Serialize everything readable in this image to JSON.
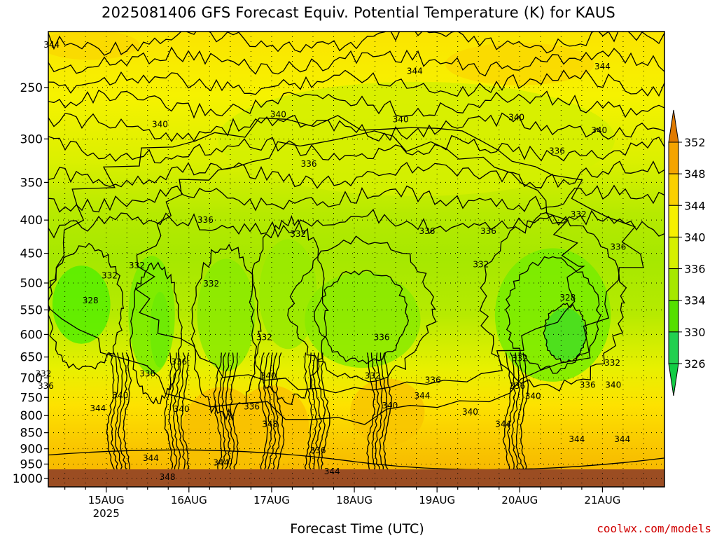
{
  "chart_data": {
    "type": "heatmap",
    "title": "2025081406 GFS Forecast Equiv. Potential Temperature (K) for KAUS",
    "xlabel": "Forecast Time (UTC)",
    "ylabel": "",
    "y_scale": "log",
    "y_reversed": true,
    "ylim": [
      1030,
      205
    ],
    "yticks": [
      1000,
      950,
      900,
      850,
      800,
      750,
      700,
      650,
      600,
      550,
      500,
      450,
      400,
      350,
      300,
      250
    ],
    "ytick_labels": [
      "1000",
      "950",
      "900",
      "850",
      "800",
      "750",
      "700",
      "650",
      "600",
      "550",
      "500",
      "450",
      "400",
      "350",
      "300",
      "250"
    ],
    "x_ticks": [
      {
        "time": "2025-08-15T00Z",
        "label": "15AUG",
        "sublabel": "2025"
      },
      {
        "time": "2025-08-16T00Z",
        "label": "16AUG",
        "sublabel": ""
      },
      {
        "time": "2025-08-17T00Z",
        "label": "17AUG",
        "sublabel": ""
      },
      {
        "time": "2025-08-18T00Z",
        "label": "18AUG",
        "sublabel": ""
      },
      {
        "time": "2025-08-19T00Z",
        "label": "19AUG",
        "sublabel": ""
      },
      {
        "time": "2025-08-20T00Z",
        "label": "20AUG",
        "sublabel": ""
      },
      {
        "time": "2025-08-21T00Z",
        "label": "21AUG",
        "sublabel": ""
      }
    ],
    "grid": true,
    "units": "K",
    "colorbar": {
      "levels": [
        326,
        330,
        334,
        336,
        340,
        344,
        348,
        352
      ],
      "colors": [
        "#33dd22",
        "#44ee00",
        "#99ee00",
        "#ccf000",
        "#f2f200",
        "#ffdd00",
        "#f9b800",
        "#f08800"
      ],
      "under_color": "#11cc44",
      "over_color": "#e07a00"
    },
    "series": [
      {
        "name": "",
        "points": [
          [
            "15AUG 00Z",
            450,
            332
          ],
          [
            "15AUG 06Z",
            650,
            334
          ],
          [
            "16AUG 00Z",
            700,
            336
          ],
          [
            "17AUG 00Z",
            700,
            340
          ],
          [
            "18AUG 12Z",
            700,
            332
          ],
          [
            "20AUG 12Z",
            600,
            328
          ],
          [
            "21AUG 00Z",
            950,
            344
          ]
        ]
      }
    ],
    "contour_labels": [
      {
        "text": "344",
        "time": 14.34,
        "p": 215
      },
      {
        "text": "344",
        "time": 18.73,
        "p": 236
      },
      {
        "text": "344",
        "time": 21.0,
        "p": 232
      },
      {
        "text": "340",
        "time": 15.65,
        "p": 285
      },
      {
        "text": "340",
        "time": 17.08,
        "p": 275
      },
      {
        "text": "340",
        "time": 18.56,
        "p": 280
      },
      {
        "text": "340",
        "time": 19.96,
        "p": 278
      },
      {
        "text": "340",
        "time": 20.96,
        "p": 291
      },
      {
        "text": "336",
        "time": 17.45,
        "p": 328
      },
      {
        "text": "336",
        "time": 20.45,
        "p": 313
      },
      {
        "text": "336",
        "time": 16.2,
        "p": 400
      },
      {
        "text": "336",
        "time": 18.88,
        "p": 416
      },
      {
        "text": "336",
        "time": 19.62,
        "p": 416
      },
      {
        "text": "336",
        "time": 21.19,
        "p": 440
      },
      {
        "text": "332",
        "time": 20.71,
        "p": 392
      },
      {
        "text": "332",
        "time": 17.32,
        "p": 420
      },
      {
        "text": "332",
        "time": 15.37,
        "p": 470
      },
      {
        "text": "332",
        "time": 15.04,
        "p": 487
      },
      {
        "text": "332",
        "time": 16.27,
        "p": 501
      },
      {
        "text": "332",
        "time": 19.53,
        "p": 468
      },
      {
        "text": "328",
        "time": 14.81,
        "p": 532
      },
      {
        "text": "328",
        "time": 20.58,
        "p": 527
      },
      {
        "text": "332",
        "time": 16.91,
        "p": 606
      },
      {
        "text": "336",
        "time": 18.33,
        "p": 606
      },
      {
        "text": "336",
        "time": 15.88,
        "p": 661
      },
      {
        "text": "332",
        "time": 20.0,
        "p": 653
      },
      {
        "text": "332",
        "time": 21.12,
        "p": 664
      },
      {
        "text": "332",
        "time": 14.24,
        "p": 690
      },
      {
        "text": "336",
        "time": 14.27,
        "p": 720
      },
      {
        "text": "336",
        "time": 15.5,
        "p": 690
      },
      {
        "text": "340",
        "time": 16.96,
        "p": 695
      },
      {
        "text": "332",
        "time": 18.22,
        "p": 695
      },
      {
        "text": "336",
        "time": 18.95,
        "p": 705
      },
      {
        "text": "336",
        "time": 19.97,
        "p": 720
      },
      {
        "text": "336",
        "time": 20.82,
        "p": 718
      },
      {
        "text": "340",
        "time": 21.13,
        "p": 718
      },
      {
        "text": "340",
        "time": 15.17,
        "p": 745
      },
      {
        "text": "344",
        "time": 18.82,
        "p": 746
      },
      {
        "text": "340",
        "time": 20.16,
        "p": 747
      },
      {
        "text": "344",
        "time": 14.9,
        "p": 780
      },
      {
        "text": "340",
        "time": 15.91,
        "p": 782
      },
      {
        "text": "336",
        "time": 16.76,
        "p": 775
      },
      {
        "text": "340",
        "time": 18.43,
        "p": 772
      },
      {
        "text": "340",
        "time": 19.4,
        "p": 790
      },
      {
        "text": "348",
        "time": 16.98,
        "p": 825
      },
      {
        "text": "344",
        "time": 19.8,
        "p": 825
      },
      {
        "text": "344",
        "time": 20.69,
        "p": 870
      },
      {
        "text": "344",
        "time": 21.24,
        "p": 870
      },
      {
        "text": "336",
        "time": 17.56,
        "p": 905
      },
      {
        "text": "344",
        "time": 15.54,
        "p": 930
      },
      {
        "text": "344",
        "time": 16.39,
        "p": 945
      },
      {
        "text": "344",
        "time": 17.73,
        "p": 975
      },
      {
        "text": "348",
        "time": 15.74,
        "p": 995
      }
    ]
  },
  "credit": "coolwx.com/models"
}
